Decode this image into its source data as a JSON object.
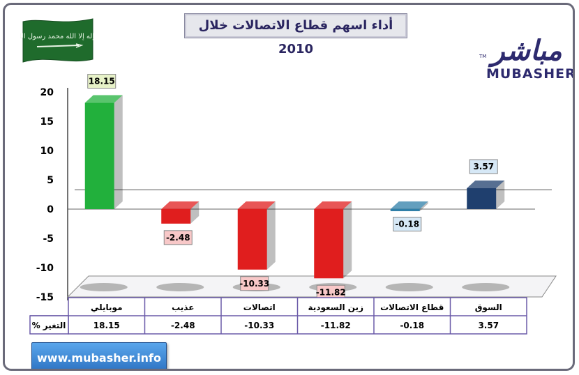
{
  "header": {
    "title": "أداء اسهم قطاع الاتصالات خلال 2010",
    "logo_arabic": "مباشر",
    "logo_english": "MUBASHER",
    "logo_tm": "TM",
    "website": "www.mubasher.info"
  },
  "flag": {
    "text": "لا إله إلا الله محمد رسول الله"
  },
  "chart_data": {
    "type": "bar",
    "title": "أداء اسهم قطاع الاتصالات خلال 2010",
    "ylabel": "",
    "ylim": [
      -15,
      20
    ],
    "yticks": [
      "20",
      "15",
      "10",
      "5",
      "0",
      "-5",
      "-10",
      "-15"
    ],
    "yticks_values": [
      20,
      15,
      10,
      5,
      0,
      -5,
      -10,
      -15
    ],
    "row_label": "التغير %",
    "categories": [
      "موبايلي",
      "عذيب",
      "اتصالات",
      "زين السعودية",
      "قطاع الاتصالات",
      "السوق"
    ],
    "values": [
      18.15,
      -2.48,
      -10.33,
      -11.82,
      -0.18,
      3.57
    ],
    "value_labels": [
      "18.15",
      "-2.48",
      "-10.33",
      "-11.82",
      "-0.18",
      "3.57"
    ],
    "colors": [
      "#22b03c",
      "#e01e1e",
      "#e01e1e",
      "#e01e1e",
      "#2f7fa8",
      "#1f3f6e"
    ],
    "label_colors": [
      "#e7f2c8",
      "#f8c8c8",
      "#f8c8c8",
      "#f8c8c8",
      "#d6e8f6",
      "#d6e8f6"
    ]
  }
}
